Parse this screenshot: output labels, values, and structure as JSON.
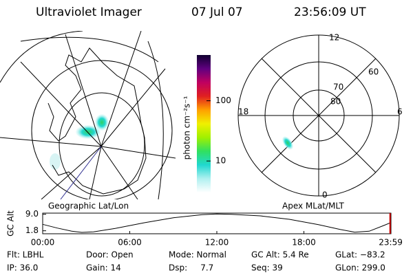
{
  "header": {
    "title": "Ultraviolet Imager",
    "date": "07 Jul 07",
    "time": "23:56:09 UT"
  },
  "geo_map": {
    "label": "Geographic Lat/Lon"
  },
  "colorbar": {
    "label": "photon cm⁻²s⁻¹",
    "scale": "log",
    "lim": [
      3,
      575
    ],
    "ticks": [
      10,
      100
    ],
    "colors": [
      "#ffffff",
      "#b0f0f0",
      "#20d8d0",
      "#30e060",
      "#a0f000",
      "#f0f000",
      "#ffa000",
      "#e02020",
      "#c00060",
      "#600080",
      "#100030"
    ]
  },
  "polar_map": {
    "label": "Apex MLat/MLT",
    "mlt_labels": [
      "12",
      "6",
      "0",
      "18"
    ],
    "lat_labels": [
      "60",
      "70",
      "80"
    ]
  },
  "orbit_plot": {
    "ylabel": "GC Alt",
    "xlim": [
      0,
      24
    ],
    "ylim": [
      0.5,
      9.5
    ],
    "yticks": [
      {
        "value": 9,
        "label": "9.0"
      },
      1.8
    ],
    "xticks": [
      {
        "value": 0,
        "label": "00:00"
      },
      {
        "value": 6,
        "label": "06:00"
      },
      {
        "value": 12,
        "label": "12:00"
      },
      {
        "value": 18,
        "label": "18:00"
      },
      {
        "value": 23.98,
        "label": "23:59"
      }
    ],
    "x": [
      0,
      1,
      2,
      2.7,
      3.5,
      5,
      7,
      9,
      11,
      12,
      13,
      15,
      17,
      19,
      20.5,
      21.5,
      22.5,
      23.5,
      24
    ],
    "values": [
      4.6,
      3.0,
      1.6,
      1.1,
      1.3,
      2.8,
      5.3,
      7.5,
      8.8,
      9.1,
      9.0,
      8.3,
      6.8,
      4.5,
      2.4,
      1.2,
      1.6,
      4.1,
      5.4
    ],
    "color": "#000000",
    "current_time": 23.94,
    "current_color": "#cc0000"
  },
  "status": {
    "rows": [
      [
        "Flt: LBHL",
        "Door: Open",
        "Mode: Normal",
        "GC Alt: 5.4 Re",
        "GLat: −83.2"
      ],
      [
        "IP: 36.0",
        "Gain: 14",
        "Dsp:     7.7",
        "Seq: 39",
        "GLon: 299.0"
      ]
    ]
  }
}
